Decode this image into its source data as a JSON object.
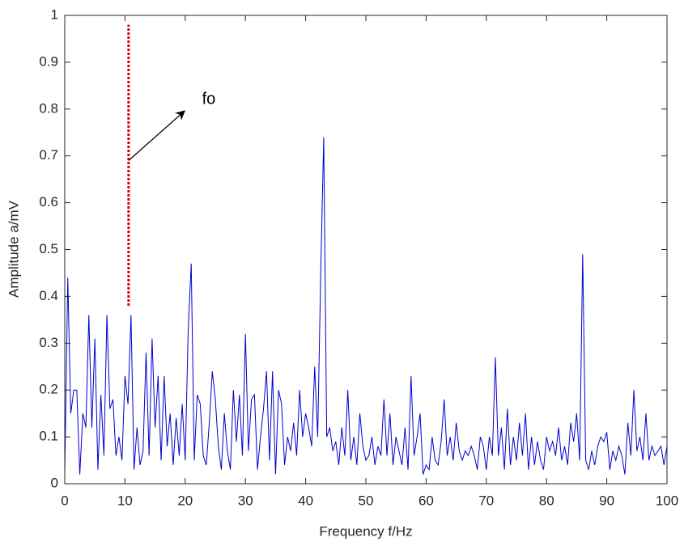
{
  "chart_data": {
    "type": "line",
    "xlabel": "Frequency f/Hz",
    "ylabel": "Amplitude a/mV",
    "color": "#0000cc",
    "xlim": [
      0,
      100
    ],
    "ylim": [
      0,
      1
    ],
    "xticks": [
      0,
      10,
      20,
      30,
      40,
      50,
      60,
      70,
      80,
      90,
      100
    ],
    "yticks": [
      0,
      0.1,
      0.2,
      0.3,
      0.4,
      0.5,
      0.6,
      0.7,
      0.8,
      0.9,
      1
    ],
    "marker": {
      "x": 10.6,
      "ymin": 0.38,
      "ymax": 0.98,
      "color": "#e00000"
    },
    "annotation": {
      "text": "fo",
      "x": 22.8,
      "y": 0.82,
      "arrow_from": [
        10.6,
        0.69
      ],
      "arrow_to": [
        19.9,
        0.796
      ]
    },
    "x": [
      0,
      0.5,
      1,
      1.5,
      2,
      2.5,
      3,
      3.5,
      4,
      4.5,
      5,
      5.5,
      6,
      6.5,
      7,
      7.5,
      8,
      8.5,
      9,
      9.5,
      10,
      10.5,
      11,
      11.5,
      12,
      12.5,
      13,
      13.5,
      14,
      14.5,
      15,
      15.5,
      16,
      16.5,
      17,
      17.5,
      18,
      18.5,
      19,
      19.5,
      20,
      20.5,
      21,
      21.5,
      22,
      22.5,
      23,
      23.5,
      24,
      24.5,
      25,
      25.5,
      26,
      26.5,
      27,
      27.5,
      28,
      28.5,
      29,
      29.5,
      30,
      30.5,
      31,
      31.5,
      32,
      32.5,
      33,
      33.5,
      34,
      34.5,
      35,
      35.5,
      36,
      36.5,
      37,
      37.5,
      38,
      38.5,
      39,
      39.5,
      40,
      40.5,
      41,
      41.5,
      42,
      42.5,
      43,
      43.5,
      44,
      44.5,
      45,
      45.5,
      46,
      46.5,
      47,
      47.5,
      48,
      48.5,
      49,
      49.5,
      50,
      50.5,
      51,
      51.5,
      52,
      52.5,
      53,
      53.5,
      54,
      54.5,
      55,
      55.5,
      56,
      56.5,
      57,
      57.5,
      58,
      58.5,
      59,
      59.5,
      60,
      60.5,
      61,
      61.5,
      62,
      62.5,
      63,
      63.5,
      64,
      64.5,
      65,
      65.5,
      66,
      66.5,
      67,
      67.5,
      68,
      68.5,
      69,
      69.5,
      70,
      70.5,
      71,
      71.5,
      72,
      72.5,
      73,
      73.5,
      74,
      74.5,
      75,
      75.5,
      76,
      76.5,
      77,
      77.5,
      78,
      78.5,
      79,
      79.5,
      80,
      80.5,
      81,
      81.5,
      82,
      82.5,
      83,
      83.5,
      84,
      84.5,
      85,
      85.5,
      86,
      86.5,
      87,
      87.5,
      88,
      88.5,
      89,
      89.5,
      90,
      90.5,
      91,
      91.5,
      92,
      92.5,
      93,
      93.5,
      94,
      94.5,
      95,
      95.5,
      96,
      96.5,
      97,
      97.5,
      98,
      98.5,
      99,
      99.5,
      100
    ],
    "values": [
      0.02,
      0.44,
      0.15,
      0.2,
      0.2,
      0.02,
      0.15,
      0.12,
      0.36,
      0.12,
      0.31,
      0.03,
      0.19,
      0.06,
      0.36,
      0.16,
      0.18,
      0.06,
      0.1,
      0.05,
      0.23,
      0.17,
      0.36,
      0.03,
      0.12,
      0.04,
      0.07,
      0.28,
      0.06,
      0.31,
      0.12,
      0.23,
      0.05,
      0.23,
      0.08,
      0.15,
      0.04,
      0.14,
      0.06,
      0.17,
      0.05,
      0.33,
      0.47,
      0.05,
      0.19,
      0.17,
      0.06,
      0.04,
      0.13,
      0.24,
      0.18,
      0.08,
      0.03,
      0.15,
      0.07,
      0.03,
      0.2,
      0.09,
      0.19,
      0.06,
      0.32,
      0.07,
      0.18,
      0.19,
      0.03,
      0.1,
      0.16,
      0.24,
      0.05,
      0.24,
      0.02,
      0.2,
      0.17,
      0.04,
      0.1,
      0.07,
      0.13,
      0.06,
      0.2,
      0.1,
      0.15,
      0.12,
      0.08,
      0.25,
      0.1,
      0.45,
      0.74,
      0.1,
      0.12,
      0.07,
      0.09,
      0.04,
      0.12,
      0.06,
      0.2,
      0.05,
      0.1,
      0.04,
      0.15,
      0.08,
      0.05,
      0.06,
      0.1,
      0.04,
      0.08,
      0.06,
      0.18,
      0.06,
      0.15,
      0.04,
      0.1,
      0.07,
      0.04,
      0.12,
      0.03,
      0.23,
      0.06,
      0.1,
      0.15,
      0.02,
      0.04,
      0.03,
      0.1,
      0.05,
      0.04,
      0.09,
      0.18,
      0.06,
      0.1,
      0.05,
      0.13,
      0.07,
      0.05,
      0.07,
      0.06,
      0.08,
      0.06,
      0.03,
      0.1,
      0.08,
      0.03,
      0.1,
      0.06,
      0.27,
      0.06,
      0.12,
      0.03,
      0.16,
      0.04,
      0.1,
      0.05,
      0.13,
      0.06,
      0.15,
      0.03,
      0.1,
      0.04,
      0.09,
      0.05,
      0.03,
      0.1,
      0.07,
      0.09,
      0.06,
      0.12,
      0.05,
      0.08,
      0.04,
      0.13,
      0.09,
      0.15,
      0.05,
      0.49,
      0.05,
      0.03,
      0.07,
      0.04,
      0.08,
      0.1,
      0.09,
      0.11,
      0.03,
      0.07,
      0.05,
      0.08,
      0.06,
      0.02,
      0.13,
      0.06,
      0.2,
      0.07,
      0.1,
      0.05,
      0.15,
      0.05,
      0.08,
      0.06,
      0.07,
      0.08,
      0.04,
      0.08
    ]
  }
}
